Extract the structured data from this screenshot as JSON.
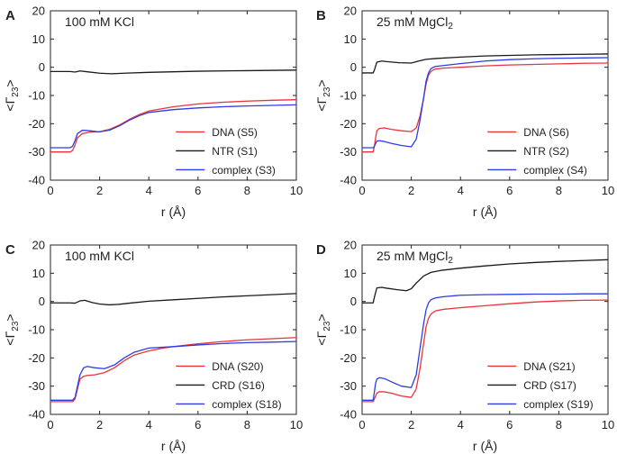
{
  "chart_data": [
    {
      "panel": "A",
      "type": "line",
      "annotation": "100 mM KCl",
      "xlabel": "r (Å)",
      "ylabel_main": "<Γ",
      "ylabel_sub": "23",
      "ylabel_end": ">",
      "xlim": [
        0,
        10
      ],
      "ylim": [
        -40,
        20
      ],
      "xticks": [
        0,
        2,
        4,
        6,
        8,
        10
      ],
      "yticks": [
        20,
        10,
        0,
        -10,
        -20,
        -30,
        -40
      ],
      "legend_position": "bottom-right",
      "series": [
        {
          "name": "DNA (S5)",
          "color": "#e8343a",
          "x": [
            0,
            0.8,
            0.9,
            1.0,
            1.1,
            1.3,
            1.6,
            2.0,
            2.4,
            2.8,
            3.2,
            3.6,
            4.0,
            5.0,
            6.0,
            7.0,
            8.0,
            9.0,
            10.0
          ],
          "y": [
            -30,
            -30,
            -29.5,
            -27.5,
            -25,
            -23.5,
            -23,
            -22.8,
            -22,
            -20.5,
            -18.5,
            -16.8,
            -15.5,
            -14,
            -13,
            -12.4,
            -12,
            -11.7,
            -11.5
          ]
        },
        {
          "name": "NTR (S1)",
          "color": "#1a1a1a",
          "x": [
            0,
            0.8,
            1.0,
            1.2,
            1.5,
            2.0,
            2.5,
            3.0,
            4.0,
            5.0,
            6.0,
            8.0,
            10.0
          ],
          "y": [
            -1.5,
            -1.5,
            -1.7,
            -1.3,
            -1.6,
            -2.1,
            -2.3,
            -2.1,
            -1.8,
            -1.6,
            -1.4,
            -1.2,
            -1.0
          ]
        },
        {
          "name": "complex (S3)",
          "color": "#2e3ce6",
          "x": [
            0,
            0.8,
            0.9,
            1.0,
            1.1,
            1.3,
            1.6,
            2.0,
            2.4,
            2.8,
            3.2,
            3.6,
            4.0,
            5.0,
            6.0,
            7.0,
            8.0,
            9.0,
            10.0
          ],
          "y": [
            -28.5,
            -28.5,
            -28,
            -26,
            -23.5,
            -22.3,
            -22.5,
            -22.9,
            -22.3,
            -20.8,
            -18.8,
            -17.2,
            -16,
            -15,
            -14.4,
            -14,
            -13.7,
            -13.5,
            -13.3
          ]
        }
      ]
    },
    {
      "panel": "B",
      "type": "line",
      "annotation_main": "25 mM MgCl",
      "annotation_sub": "2",
      "xlabel": "r (Å)",
      "ylabel_main": "<Γ",
      "ylabel_sub": "23",
      "ylabel_end": ">",
      "xlim": [
        0,
        10
      ],
      "ylim": [
        -40,
        20
      ],
      "xticks": [
        0,
        2,
        4,
        6,
        8,
        10
      ],
      "yticks": [
        20,
        10,
        0,
        -10,
        -20,
        -30,
        -40
      ],
      "legend_position": "bottom-right",
      "series": [
        {
          "name": "DNA (S6)",
          "color": "#e8343a",
          "x": [
            0,
            0.45,
            0.5,
            0.55,
            0.6,
            0.7,
            0.9,
            1.2,
            1.6,
            2.0,
            2.2,
            2.35,
            2.5,
            2.6,
            2.7,
            2.8,
            2.9,
            3.0,
            3.3,
            4.0,
            5.0,
            6.0,
            7.0,
            8.0,
            9.0,
            10.0
          ],
          "y": [
            -30,
            -30,
            -28,
            -25,
            -22.5,
            -21.7,
            -21.5,
            -22,
            -22.5,
            -22.8,
            -21.5,
            -17.5,
            -11,
            -6,
            -2.8,
            -1.5,
            -0.9,
            -0.6,
            -0.3,
            0,
            0.5,
            0.8,
            1.0,
            1.2,
            1.4,
            1.5
          ]
        },
        {
          "name": "NTR (S2)",
          "color": "#1a1a1a",
          "x": [
            0,
            0.45,
            0.5,
            0.6,
            0.8,
            1.0,
            1.5,
            2.0,
            2.3,
            2.6,
            3.0,
            4.0,
            5.0,
            6.0,
            7.0,
            8.0,
            9.0,
            10.0
          ],
          "y": [
            -2,
            -2,
            -1,
            1.8,
            2.2,
            2.0,
            1.6,
            1.5,
            2.2,
            2.8,
            3.1,
            3.6,
            4.0,
            4.2,
            4.4,
            4.5,
            4.6,
            4.7
          ]
        },
        {
          "name": "complex (S4)",
          "color": "#2e3ce6",
          "x": [
            0,
            0.45,
            0.5,
            0.55,
            0.6,
            0.7,
            0.9,
            1.2,
            1.6,
            2.0,
            2.2,
            2.35,
            2.5,
            2.6,
            2.7,
            2.8,
            2.9,
            3.0,
            3.3,
            4.0,
            5.0,
            6.0,
            7.0,
            8.0,
            9.0,
            10.0
          ],
          "y": [
            -28.5,
            -28.5,
            -28,
            -27,
            -26.2,
            -26,
            -26.3,
            -27,
            -27.7,
            -28.2,
            -25.5,
            -19,
            -11,
            -5,
            -2,
            -0.5,
            0,
            0.3,
            0.6,
            1.3,
            2.2,
            2.7,
            3.0,
            3.2,
            3.3,
            3.4
          ]
        }
      ]
    },
    {
      "panel": "C",
      "type": "line",
      "annotation": "100 mM KCl",
      "xlabel": "r (Å)",
      "ylabel_main": "<Γ",
      "ylabel_sub": "23",
      "ylabel_end": ">",
      "xlim": [
        0,
        10
      ],
      "ylim": [
        -40,
        20
      ],
      "xticks": [
        0,
        2,
        4,
        6,
        8,
        10
      ],
      "yticks": [
        20,
        10,
        0,
        -10,
        -20,
        -30,
        -40
      ],
      "legend_position": "bottom-right",
      "series": [
        {
          "name": "DNA (S20)",
          "color": "#e8343a",
          "x": [
            0,
            0.9,
            1.0,
            1.1,
            1.2,
            1.35,
            1.5,
            1.8,
            2.2,
            2.6,
            3.0,
            3.4,
            4.0,
            4.6,
            5.0,
            6.0,
            7.0,
            8.0,
            9.0,
            10.0
          ],
          "y": [
            -35.5,
            -35.5,
            -34.5,
            -31,
            -27.5,
            -26.5,
            -26.2,
            -26,
            -25.2,
            -23.5,
            -21,
            -19,
            -17.5,
            -16.5,
            -16,
            -15,
            -14.2,
            -13.6,
            -13.2,
            -12.8
          ]
        },
        {
          "name": "CRD (S16)",
          "color": "#1a1a1a",
          "x": [
            0,
            0.8,
            1.0,
            1.2,
            1.4,
            1.7,
            2.0,
            2.4,
            2.8,
            3.2,
            4.0,
            5.0,
            6.0,
            7.0,
            8.0,
            9.0,
            10.0
          ],
          "y": [
            -0.5,
            -0.5,
            -0.6,
            0.2,
            0.4,
            -0.4,
            -0.9,
            -1.2,
            -1.0,
            -0.6,
            0.1,
            0.6,
            1.1,
            1.6,
            2.0,
            2.4,
            2.8
          ]
        },
        {
          "name": "complex (S18)",
          "color": "#2e3ce6",
          "x": [
            0,
            0.9,
            1.0,
            1.1,
            1.2,
            1.35,
            1.5,
            1.8,
            2.2,
            2.6,
            3.0,
            3.4,
            4.0,
            4.6,
            5.0,
            6.0,
            7.0,
            8.0,
            9.0,
            10.0
          ],
          "y": [
            -35,
            -35,
            -34,
            -30,
            -26,
            -23.5,
            -23,
            -23.5,
            -23.8,
            -22.5,
            -20,
            -18,
            -16.5,
            -16.2,
            -16,
            -15.4,
            -14.9,
            -14.6,
            -14.4,
            -14.2
          ]
        }
      ]
    },
    {
      "panel": "D",
      "type": "line",
      "annotation_main": "25 mM MgCl",
      "annotation_sub": "2",
      "xlabel": "r (Å)",
      "ylabel_main": "<Γ",
      "ylabel_sub": "23",
      "ylabel_end": ">",
      "xlim": [
        0,
        10
      ],
      "ylim": [
        -40,
        20
      ],
      "xticks": [
        0,
        2,
        4,
        6,
        8,
        10
      ],
      "yticks": [
        20,
        10,
        0,
        -10,
        -20,
        -30,
        -40
      ],
      "legend_position": "bottom-right",
      "series": [
        {
          "name": "DNA (S21)",
          "color": "#e8343a",
          "x": [
            0,
            0.45,
            0.5,
            0.55,
            0.6,
            0.7,
            0.9,
            1.2,
            1.6,
            2.0,
            2.2,
            2.35,
            2.5,
            2.6,
            2.7,
            2.8,
            2.9,
            3.0,
            3.3,
            4.0,
            5.0,
            6.0,
            7.0,
            8.0,
            9.0,
            10.0
          ],
          "y": [
            -35.5,
            -35.5,
            -34.5,
            -33.5,
            -32.5,
            -32,
            -32,
            -32.5,
            -33.5,
            -34,
            -31,
            -24,
            -15,
            -9,
            -6,
            -4.5,
            -3.8,
            -3.3,
            -2.8,
            -2.2,
            -1.5,
            -0.8,
            -0.2,
            0.2,
            0.4,
            0.5
          ]
        },
        {
          "name": "CRD (S17)",
          "color": "#1a1a1a",
          "x": [
            0,
            0.45,
            0.5,
            0.6,
            0.8,
            1.0,
            1.4,
            1.8,
            2.0,
            2.2,
            2.5,
            2.8,
            3.2,
            4.0,
            5.0,
            6.0,
            7.0,
            8.0,
            9.0,
            10.0
          ],
          "y": [
            -0.5,
            -0.5,
            1.5,
            4.8,
            5.0,
            4.7,
            4.2,
            3.8,
            4.5,
            6.5,
            9.0,
            10.3,
            11.0,
            11.8,
            12.6,
            13.3,
            13.8,
            14.2,
            14.5,
            14.8
          ]
        },
        {
          "name": "complex (S19)",
          "color": "#2e3ce6",
          "x": [
            0,
            0.45,
            0.5,
            0.55,
            0.6,
            0.7,
            0.9,
            1.2,
            1.6,
            2.0,
            2.2,
            2.35,
            2.5,
            2.6,
            2.7,
            2.8,
            2.9,
            3.0,
            3.3,
            4.0,
            5.0,
            6.0,
            7.0,
            8.0,
            9.0,
            10.0
          ],
          "y": [
            -35,
            -35,
            -32,
            -29,
            -27.5,
            -27,
            -27.3,
            -28.5,
            -30,
            -30.5,
            -26,
            -17,
            -8,
            -3,
            -0.5,
            0.6,
            1.0,
            1.3,
            1.7,
            2.2,
            2.4,
            2.5,
            2.6,
            2.6,
            2.7,
            2.7
          ]
        }
      ]
    }
  ]
}
